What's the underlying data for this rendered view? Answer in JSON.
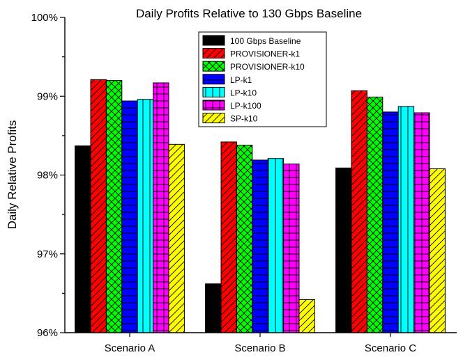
{
  "chart_data": {
    "type": "bar",
    "title": "Daily Profits Relative to 130 Gbps Baseline",
    "xlabel": "",
    "ylabel": "Daily Relative Profits",
    "ylim": [
      96,
      100
    ],
    "yticks": [
      "96%",
      "97%",
      "98%",
      "99%",
      "100%"
    ],
    "categories": [
      "Scenario A",
      "Scenario B",
      "Scenario C"
    ],
    "legend_position": "top-center",
    "grid": false,
    "series": [
      {
        "name": "100 Gbps Baseline",
        "color": "#000000",
        "pattern": "solid",
        "values": [
          98.37,
          96.62,
          98.09
        ]
      },
      {
        "name": "PROVISIONER-k1",
        "color": "#ff0000",
        "pattern": "diag",
        "values": [
          99.21,
          98.42,
          99.07
        ]
      },
      {
        "name": "PROVISIONER-k10",
        "color": "#00ff00",
        "pattern": "cross",
        "values": [
          99.2,
          98.38,
          98.99
        ]
      },
      {
        "name": "LP-k1",
        "color": "#0000ff",
        "pattern": "horiz",
        "values": [
          98.94,
          98.19,
          98.8
        ]
      },
      {
        "name": "LP-k10",
        "color": "#00ffff",
        "pattern": "vert",
        "values": [
          98.96,
          98.21,
          98.87
        ]
      },
      {
        "name": "LP-k100",
        "color": "#ff00ff",
        "pattern": "grid",
        "values": [
          99.17,
          98.14,
          98.79
        ]
      },
      {
        "name": "SP-k10",
        "color": "#ffff00",
        "pattern": "diag",
        "values": [
          98.39,
          96.42,
          98.08
        ]
      }
    ]
  }
}
